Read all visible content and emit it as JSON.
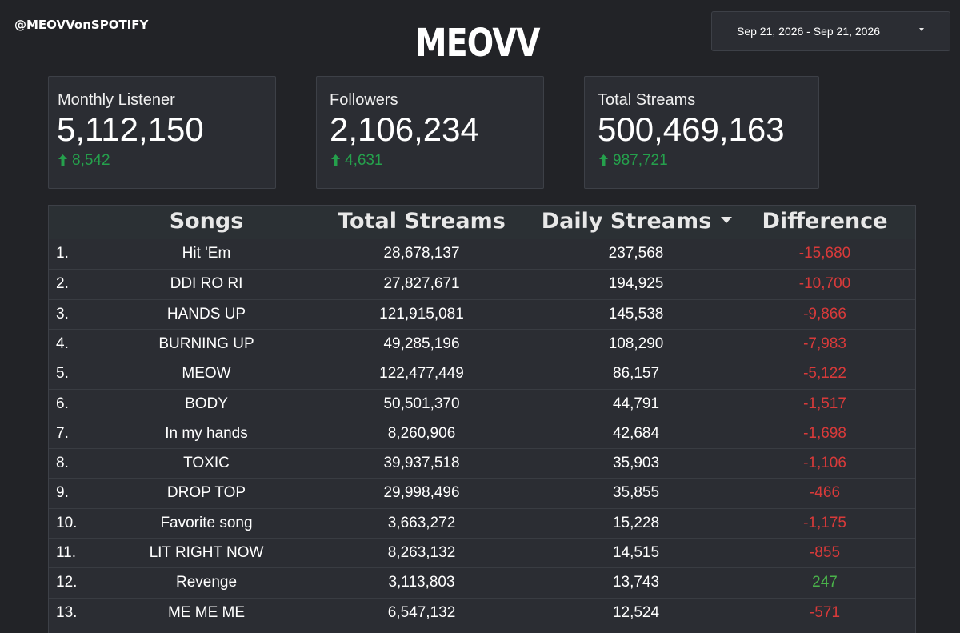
{
  "header": {
    "handle": "@MEOVVonSPOTIFY",
    "title": "MEOVV",
    "date_range": "Sep 21, 2026 - Sep 21, 2026"
  },
  "cards": [
    {
      "label": "Monthly Listener",
      "value": "5,112,150",
      "delta": "8,542"
    },
    {
      "label": "Followers",
      "value": "2,106,234",
      "delta": "4,631"
    },
    {
      "label": "Total Streams",
      "value": "500,469,163",
      "delta": "987,721"
    }
  ],
  "colors": {
    "background": "#222327",
    "card": "#2b2d33",
    "positive": "#25a04c",
    "negative": "#d93a3a"
  },
  "table": {
    "headers": {
      "songs": "Songs",
      "total": "Total Streams",
      "daily": "Daily Streams",
      "diff": "Difference"
    },
    "sorted_by": "daily",
    "rows": [
      {
        "rank": "1.",
        "song": "Hit 'Em",
        "total": "28,678,137",
        "daily": "237,568",
        "diff": "-15,680",
        "dir": "neg"
      },
      {
        "rank": "2.",
        "song": "DDI RO RI",
        "total": "27,827,671",
        "daily": "194,925",
        "diff": "-10,700",
        "dir": "neg"
      },
      {
        "rank": "3.",
        "song": "HANDS UP",
        "total": "121,915,081",
        "daily": "145,538",
        "diff": "-9,866",
        "dir": "neg"
      },
      {
        "rank": "4.",
        "song": "BURNING UP",
        "total": "49,285,196",
        "daily": "108,290",
        "diff": "-7,983",
        "dir": "neg"
      },
      {
        "rank": "5.",
        "song": "MEOW",
        "total": "122,477,449",
        "daily": "86,157",
        "diff": "-5,122",
        "dir": "neg"
      },
      {
        "rank": "6.",
        "song": "BODY",
        "total": "50,501,370",
        "daily": "44,791",
        "diff": "-1,517",
        "dir": "neg"
      },
      {
        "rank": "7.",
        "song": "In my hands",
        "total": "8,260,906",
        "daily": "42,684",
        "diff": "-1,698",
        "dir": "neg"
      },
      {
        "rank": "8.",
        "song": "TOXIC",
        "total": "39,937,518",
        "daily": "35,903",
        "diff": "-1,106",
        "dir": "neg"
      },
      {
        "rank": "9.",
        "song": "DROP TOP",
        "total": "29,998,496",
        "daily": "35,855",
        "diff": "-466",
        "dir": "neg"
      },
      {
        "rank": "10.",
        "song": "Favorite song",
        "total": "3,663,272",
        "daily": "15,228",
        "diff": "-1,175",
        "dir": "neg"
      },
      {
        "rank": "11.",
        "song": "LIT RIGHT NOW",
        "total": "8,263,132",
        "daily": "14,515",
        "diff": "-855",
        "dir": "neg"
      },
      {
        "rank": "12.",
        "song": "Revenge",
        "total": "3,113,803",
        "daily": "13,743",
        "diff": "247",
        "dir": "pos"
      },
      {
        "rank": "13.",
        "song": "ME ME ME",
        "total": "6,547,132",
        "daily": "12,524",
        "diff": "-571",
        "dir": "neg"
      }
    ]
  }
}
